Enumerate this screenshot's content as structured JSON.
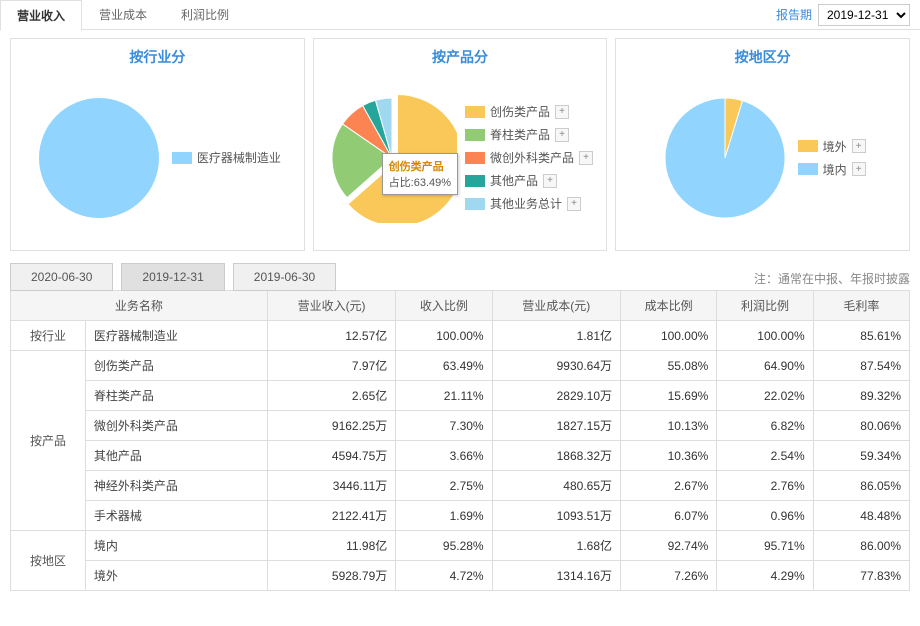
{
  "topTabs": {
    "items": [
      "营业收入",
      "营业成本",
      "利润比例"
    ],
    "activeIndex": 0
  },
  "reportPeriod": {
    "label": "报告期",
    "value": "2019-12-31"
  },
  "colors": {
    "blue": "#91d5ff",
    "yellow": "#fac858",
    "green": "#91cc75",
    "orange": "#fc8452",
    "teal": "#26a69a",
    "lightBlue": "#a0d8f0",
    "titleColor": "#3a8bd8",
    "border": "#e0e0e0"
  },
  "charts": [
    {
      "id": "industry",
      "title": "按行业分",
      "type": "pie",
      "slices": [
        {
          "label": "医疗器械制造业",
          "value": 100.0,
          "color": "#91d5ff"
        }
      ],
      "expandButtons": false,
      "legendAlign": "right"
    },
    {
      "id": "product",
      "title": "按产品分",
      "type": "pie-exploded",
      "explodedIndex": 0,
      "tooltip": {
        "name": "创伤类产品",
        "pctLabel": "占比",
        "pct": "63.49%"
      },
      "slices": [
        {
          "label": "创伤类产品",
          "value": 63.49,
          "color": "#fac858"
        },
        {
          "label": "脊柱类产品",
          "value": 21.11,
          "color": "#91cc75"
        },
        {
          "label": "微创外科类产品",
          "value": 7.3,
          "color": "#fc8452"
        },
        {
          "label": "其他产品",
          "value": 3.66,
          "color": "#26a69a"
        },
        {
          "label": "其他业务总计",
          "value": 4.44,
          "color": "#a0d8f0"
        }
      ],
      "expandButtons": true
    },
    {
      "id": "region",
      "title": "按地区分",
      "type": "pie",
      "slices": [
        {
          "label": "境外",
          "value": 4.72,
          "color": "#fac858"
        },
        {
          "label": "境内",
          "value": 95.28,
          "color": "#91d5ff"
        }
      ],
      "expandButtons": true
    }
  ],
  "dateTabs": {
    "items": [
      "2020-06-30",
      "2019-12-31",
      "2019-06-30"
    ],
    "activeIndex": 1
  },
  "tableNote": "注：通常在中报、年报时披露",
  "table": {
    "cols": [
      "业务名称",
      "营业收入(元)",
      "收入比例",
      "营业成本(元)",
      "成本比例",
      "利润比例",
      "毛利率"
    ],
    "colWidths": [
      "70px",
      "170px",
      "120px",
      "90px",
      "120px",
      "90px",
      "90px",
      "90px"
    ],
    "groups": [
      {
        "label": "按行业",
        "rows": [
          {
            "name": "医疗器械制造业",
            "rev": "12.57亿",
            "revPct": "100.00%",
            "cost": "1.81亿",
            "costPct": "100.00%",
            "profitPct": "100.00%",
            "gross": "85.61%"
          }
        ]
      },
      {
        "label": "按产品",
        "rows": [
          {
            "name": "创伤类产品",
            "rev": "7.97亿",
            "revPct": "63.49%",
            "cost": "9930.64万",
            "costPct": "55.08%",
            "profitPct": "64.90%",
            "gross": "87.54%"
          },
          {
            "name": "脊柱类产品",
            "rev": "2.65亿",
            "revPct": "21.11%",
            "cost": "2829.10万",
            "costPct": "15.69%",
            "profitPct": "22.02%",
            "gross": "89.32%"
          },
          {
            "name": "微创外科类产品",
            "rev": "9162.25万",
            "revPct": "7.30%",
            "cost": "1827.15万",
            "costPct": "10.13%",
            "profitPct": "6.82%",
            "gross": "80.06%"
          },
          {
            "name": "其他产品",
            "rev": "4594.75万",
            "revPct": "3.66%",
            "cost": "1868.32万",
            "costPct": "10.36%",
            "profitPct": "2.54%",
            "gross": "59.34%"
          },
          {
            "name": "神经外科类产品",
            "rev": "3446.11万",
            "revPct": "2.75%",
            "cost": "480.65万",
            "costPct": "2.67%",
            "profitPct": "2.76%",
            "gross": "86.05%"
          },
          {
            "name": "手术器械",
            "rev": "2122.41万",
            "revPct": "1.69%",
            "cost": "1093.51万",
            "costPct": "6.07%",
            "profitPct": "0.96%",
            "gross": "48.48%"
          }
        ]
      },
      {
        "label": "按地区",
        "rows": [
          {
            "name": "境内",
            "rev": "11.98亿",
            "revPct": "95.28%",
            "cost": "1.68亿",
            "costPct": "92.74%",
            "profitPct": "95.71%",
            "gross": "86.00%"
          },
          {
            "name": "境外",
            "rev": "5928.79万",
            "revPct": "4.72%",
            "cost": "1314.16万",
            "costPct": "7.26%",
            "profitPct": "4.29%",
            "gross": "77.83%"
          }
        ]
      }
    ]
  }
}
